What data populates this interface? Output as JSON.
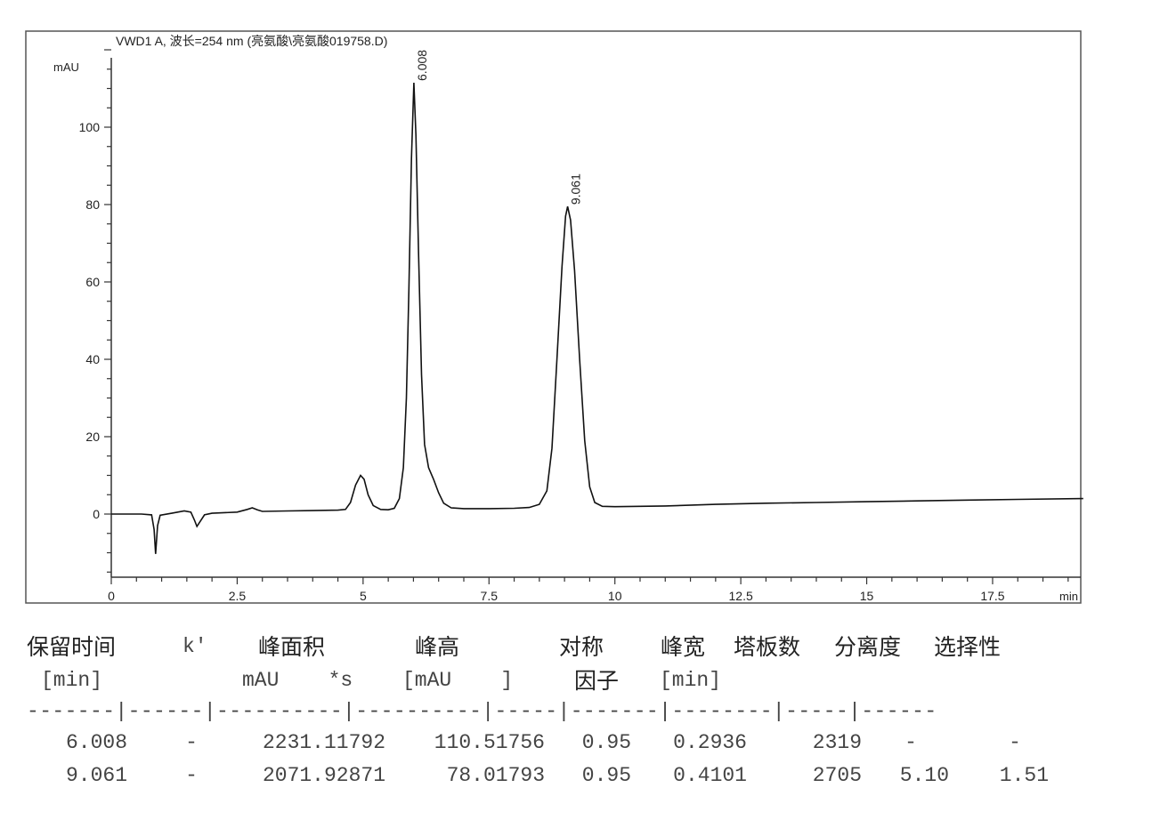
{
  "chart_data": {
    "type": "line",
    "title": "VWD1 A, 波长=254 nm (亮氨酸\\亮氨酸019758.D)",
    "ylabel": "mAU",
    "xlabel": "min",
    "xlim": [
      0,
      19.3
    ],
    "ylim": [
      -16,
      125
    ],
    "x_ticks": [
      "0",
      "2.5",
      "5",
      "7.5",
      "10",
      "12.5",
      "15",
      "17.5"
    ],
    "y_ticks": [
      "0",
      "20",
      "40",
      "60",
      "80",
      "100"
    ],
    "grid": false,
    "peak_labels": [
      {
        "label": "6.008",
        "x": 6.008,
        "y": 111.5
      },
      {
        "label": "9.061",
        "x": 9.061,
        "y": 79.5
      }
    ],
    "trace": [
      [
        0,
        0
      ],
      [
        0.6,
        0
      ],
      [
        0.8,
        -0.2
      ],
      [
        0.85,
        -4
      ],
      [
        0.88,
        -10.3
      ],
      [
        0.92,
        -3
      ],
      [
        0.97,
        -0.3
      ],
      [
        1.2,
        0.2
      ],
      [
        1.45,
        0.8
      ],
      [
        1.58,
        0.5
      ],
      [
        1.65,
        -1.5
      ],
      [
        1.7,
        -3.2
      ],
      [
        1.76,
        -2
      ],
      [
        1.85,
        -0.2
      ],
      [
        2.0,
        0.2
      ],
      [
        2.5,
        0.5
      ],
      [
        2.7,
        1.2
      ],
      [
        2.8,
        1.6
      ],
      [
        2.9,
        1.1
      ],
      [
        3.0,
        0.7
      ],
      [
        3.5,
        0.8
      ],
      [
        4.0,
        0.9
      ],
      [
        4.5,
        1.0
      ],
      [
        4.65,
        1.2
      ],
      [
        4.75,
        3
      ],
      [
        4.85,
        7.5
      ],
      [
        4.95,
        10
      ],
      [
        5.02,
        9
      ],
      [
        5.1,
        5
      ],
      [
        5.2,
        2.2
      ],
      [
        5.35,
        1.2
      ],
      [
        5.5,
        1.1
      ],
      [
        5.62,
        1.5
      ],
      [
        5.72,
        4
      ],
      [
        5.8,
        12
      ],
      [
        5.86,
        30
      ],
      [
        5.91,
        58
      ],
      [
        5.96,
        92
      ],
      [
        6.008,
        111.5
      ],
      [
        6.05,
        98
      ],
      [
        6.1,
        68
      ],
      [
        6.16,
        36
      ],
      [
        6.22,
        18
      ],
      [
        6.3,
        12
      ],
      [
        6.4,
        9
      ],
      [
        6.5,
        5.5
      ],
      [
        6.6,
        2.8
      ],
      [
        6.75,
        1.6
      ],
      [
        7.0,
        1.4
      ],
      [
        7.5,
        1.4
      ],
      [
        8.0,
        1.5
      ],
      [
        8.3,
        1.7
      ],
      [
        8.5,
        2.5
      ],
      [
        8.65,
        6
      ],
      [
        8.75,
        17
      ],
      [
        8.85,
        40
      ],
      [
        8.95,
        64
      ],
      [
        9.02,
        77
      ],
      [
        9.061,
        79.5
      ],
      [
        9.12,
        76
      ],
      [
        9.2,
        63
      ],
      [
        9.3,
        40
      ],
      [
        9.4,
        19
      ],
      [
        9.5,
        7
      ],
      [
        9.6,
        3
      ],
      [
        9.75,
        2
      ],
      [
        10,
        1.9
      ],
      [
        11,
        2.1
      ],
      [
        12,
        2.5
      ],
      [
        13,
        2.8
      ],
      [
        14,
        3.0
      ],
      [
        15,
        3.2
      ],
      [
        16,
        3.4
      ],
      [
        17,
        3.6
      ],
      [
        18,
        3.8
      ],
      [
        19.3,
        4.0
      ]
    ]
  },
  "table": {
    "headers": [
      "保留时间",
      "k'",
      "峰面积",
      "峰高",
      "对称",
      "峰宽",
      "塔板数",
      "分离度",
      "选择性"
    ],
    "units": [
      "[min]",
      "mAU    *s",
      "[mAU    ]",
      "因子",
      "[min]"
    ],
    "separator": "-------|------|----------|----------|-----|-------|--------|-----|------",
    "rows": [
      [
        "6.008",
        "-",
        "2231.11792",
        "110.51756",
        "0.95",
        "0.2936",
        "2319",
        "-",
        "-"
      ],
      [
        "9.061",
        "-",
        "2071.92871",
        "78.01793",
        "0.95",
        "0.4101",
        "2705",
        "5.10",
        "1.51"
      ]
    ]
  }
}
